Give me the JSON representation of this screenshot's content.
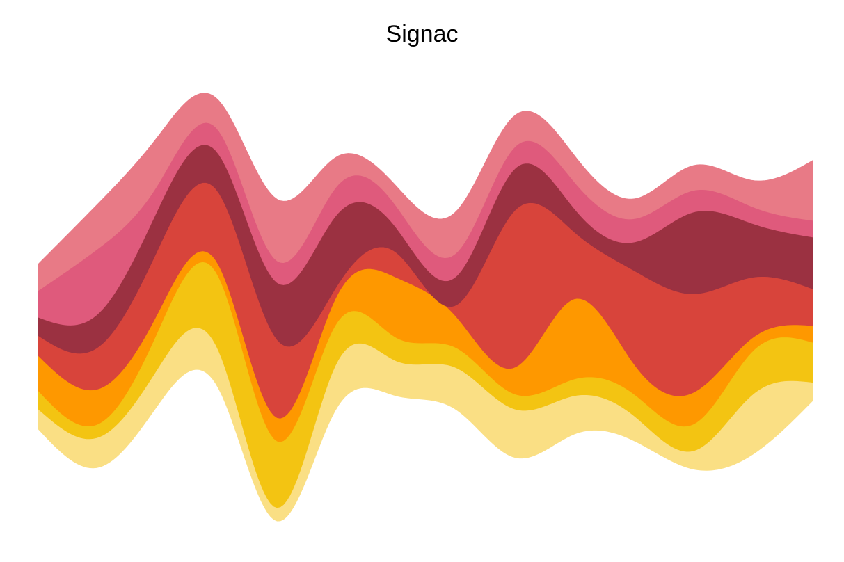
{
  "chart_data": {
    "type": "area",
    "title": "Signac",
    "xlabel": "",
    "ylabel": "",
    "grid": false,
    "legend": "none",
    "x": [
      0,
      1,
      2,
      3,
      4,
      5,
      6,
      7,
      8,
      9,
      10,
      11,
      12,
      13
    ],
    "baseline": [
      -8.0,
      -10.3,
      -6.6,
      -5.4,
      -13.5,
      -6.8,
      -6.0,
      -6.8,
      -9.7,
      -8.3,
      -8.7,
      -10.4,
      -9.5,
      -6.3
    ],
    "series": [
      {
        "color": "#FADF84",
        "values": [
          1.2,
          1.8,
          2.2,
          2.3,
          0.8,
          2.7,
          2.1,
          2.5,
          2.9,
          2.3,
          1.5,
          1.1,
          3.6,
          1.1
        ]
      },
      {
        "color": "#F3C412",
        "values": [
          1.1,
          0.8,
          2.2,
          4.4,
          4.0,
          2.4,
          1.4,
          1.2,
          0.9,
          1.0,
          1.3,
          1.6,
          2.6,
          2.4
        ]
      },
      {
        "color": "#FE9800",
        "values": [
          2.1,
          2.1,
          1.1,
          0.7,
          1.4,
          1.6,
          3.6,
          1.9,
          1.6,
          4.8,
          1.8,
          1.9,
          0.8,
          1.0
        ]
      },
      {
        "color": "#D8443B",
        "values": [
          1.2,
          2.5,
          3.8,
          4.3,
          4.7,
          0.6,
          1.5,
          0.6,
          9.4,
          4.0,
          5.6,
          5.9,
          3.6,
          2.2
        ]
      },
      {
        "color": "#9B3141",
        "values": [
          1.1,
          2.0,
          2.4,
          2.3,
          3.4,
          4.3,
          1.5,
          1.7,
          2.5,
          1.4,
          1.7,
          4.9,
          3.2,
          3.1
        ]
      },
      {
        "color": "#DF5A7C",
        "values": [
          1.6,
          3.9,
          1.5,
          1.4,
          1.3,
          1.7,
          1.3,
          1.4,
          1.3,
          1.6,
          1.4,
          1.3,
          1.0,
          1.0
        ]
      },
      {
        "color": "#E87A86",
        "values": [
          1.6,
          2.7,
          2.9,
          1.8,
          3.7,
          1.8,
          1.2,
          2.5,
          1.9,
          1.6,
          1.2,
          1.5,
          1.6,
          3.6
        ]
      }
    ]
  }
}
